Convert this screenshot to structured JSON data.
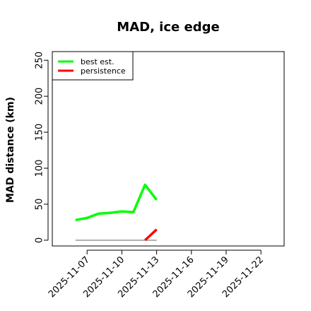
{
  "chart_data": {
    "type": "line",
    "title": "MAD, ice edge",
    "xlabel": "",
    "ylabel": "MAD distance (km)",
    "x_ticks": [
      "2025-11-07",
      "2025-11-10",
      "2025-11-13",
      "2025-11-16",
      "2025-11-19",
      "2025-11-22"
    ],
    "xlim": [
      "2025-11-04",
      "2025-11-24"
    ],
    "ylim": [
      -8,
      262
    ],
    "y_ticks": [
      0,
      50,
      100,
      150,
      200,
      250
    ],
    "grid": false,
    "legend": {
      "placement": "top-left"
    },
    "series": [
      {
        "name": "best est.",
        "color": "#00ff00",
        "x": [
          "2025-11-06",
          "2025-11-07",
          "2025-11-08",
          "2025-11-09",
          "2025-11-10",
          "2025-11-11",
          "2025-11-12",
          "2025-11-13"
        ],
        "y": [
          28,
          31,
          37,
          38,
          40,
          39,
          77,
          56
        ]
      },
      {
        "name": "persistence",
        "color": "#ff0000",
        "x": [
          "2025-11-12",
          "2025-11-13"
        ],
        "y": [
          0,
          15
        ]
      },
      {
        "name": "",
        "color": "#808080",
        "x": [
          "2025-11-06",
          "2025-11-13"
        ],
        "y": [
          0,
          0
        ]
      }
    ]
  }
}
